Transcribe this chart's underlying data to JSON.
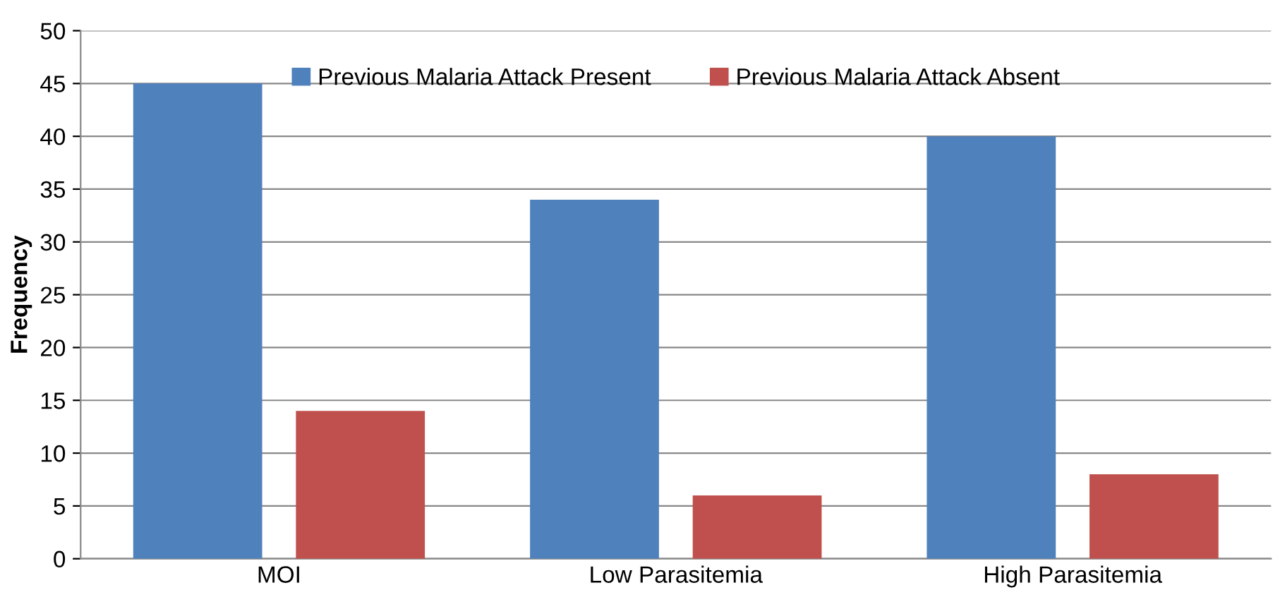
{
  "chart_data": {
    "type": "bar",
    "ylabel": "Frequency",
    "categories": [
      "MOI",
      "Low Parasitemia",
      "High Parasitemia"
    ],
    "series": [
      {
        "name": "Previous Malaria Attack Present",
        "color": "#4f81bd",
        "values": [
          45,
          34,
          40
        ]
      },
      {
        "name": "Previous Malaria Attack Absent",
        "color": "#c0504d",
        "values": [
          14,
          6,
          8
        ]
      }
    ],
    "ylim": [
      0,
      50
    ],
    "yticks": [
      0,
      5,
      10,
      15,
      20,
      25,
      30,
      35,
      40,
      45,
      50
    ],
    "grid": "y",
    "legend": "top"
  }
}
